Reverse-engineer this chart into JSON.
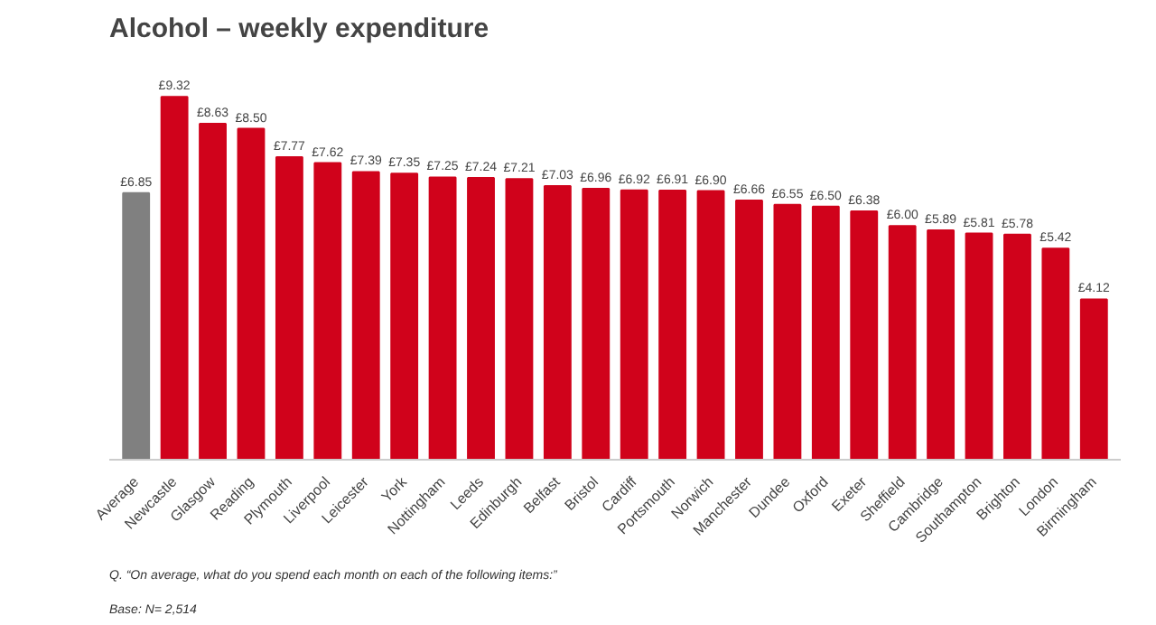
{
  "chart_data": {
    "type": "bar",
    "title": "Alcohol – weekly expenditure",
    "categories": [
      "Average",
      "Newcastle",
      "Glasgow",
      "Reading",
      "Plymouth",
      "Liverpool",
      "Leicester",
      "York",
      "Nottingham",
      "Leeds",
      "Edinburgh",
      "Belfast",
      "Bristol",
      "Cardiff",
      "Portsmouth",
      "Norwich",
      "Manchester",
      "Dundee",
      "Oxford",
      "Exeter",
      "Sheffield",
      "Cambridge",
      "Southampton",
      "Brighton",
      "London",
      "Birmingham"
    ],
    "values": [
      6.85,
      9.32,
      8.63,
      8.5,
      7.77,
      7.62,
      7.39,
      7.35,
      7.25,
      7.24,
      7.21,
      7.03,
      6.96,
      6.92,
      6.91,
      6.9,
      6.66,
      6.55,
      6.5,
      6.38,
      6.0,
      5.89,
      5.81,
      5.78,
      5.42,
      4.12
    ],
    "value_labels": [
      "£6.85",
      "£9.32",
      "£8.63",
      "£8.50",
      "£7.77",
      "£7.62",
      "£7.39",
      "£7.35",
      "£7.25",
      "£7.24",
      "£7.21",
      "£7.03",
      "£6.96",
      "£6.92",
      "£6.91",
      "£6.90",
      "£6.66",
      "£6.55",
      "£6.50",
      "£6.38",
      "£6.00",
      "£5.89",
      "£5.81",
      "£5.78",
      "£5.42",
      "£4.12"
    ],
    "colors": [
      "#808080",
      "#d0021b",
      "#d0021b",
      "#d0021b",
      "#d0021b",
      "#d0021b",
      "#d0021b",
      "#d0021b",
      "#d0021b",
      "#d0021b",
      "#d0021b",
      "#d0021b",
      "#d0021b",
      "#d0021b",
      "#d0021b",
      "#d0021b",
      "#d0021b",
      "#d0021b",
      "#d0021b",
      "#d0021b",
      "#d0021b",
      "#d0021b",
      "#d0021b",
      "#d0021b",
      "#d0021b",
      "#d0021b"
    ],
    "annotations": [
      "Q. “On average, what do you spend each month on each of the following items:”",
      "Base:  N= 2,514"
    ],
    "grid": false
  }
}
